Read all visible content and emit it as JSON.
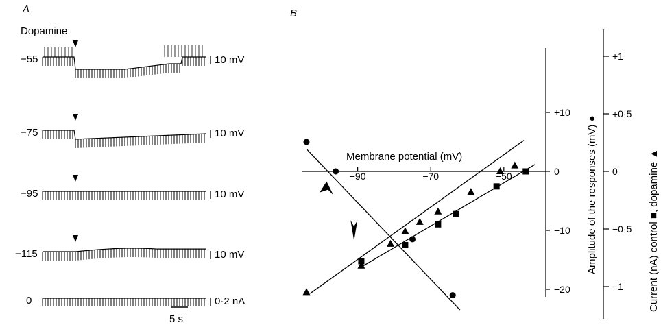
{
  "chart_data": [
    {
      "type": "traces",
      "panel_label": "A",
      "stimulus_label": "Dopamine",
      "traces": [
        {
          "holding_potential": "−55",
          "scale_label": "10 mV",
          "response": "hyperpolarization, firing suppressed then recovers"
        },
        {
          "holding_potential": "−75",
          "scale_label": "10 mV",
          "response": "hyperpolarization"
        },
        {
          "holding_potential": "−95",
          "scale_label": "10 mV",
          "response": "no clear response"
        },
        {
          "holding_potential": "−115",
          "scale_label": "10 mV",
          "response": "small depolarization"
        },
        {
          "holding_potential": "0",
          "scale_label": "0·2 nA",
          "response": "current pulses"
        }
      ],
      "time_scale_label": "5 s"
    },
    {
      "type": "scatter",
      "panel_label": "B",
      "xlabel": "Membrane potential (mV)",
      "x_ticks": [
        "−90",
        "−70",
        "−50"
      ],
      "xlim": [
        -104,
        -40
      ],
      "ylabel_right_1": "Amplitude of the responses (mV) ●",
      "y1_ticks": [
        "+10",
        "0",
        "−10",
        "−20"
      ],
      "ylim_mV": [
        -25,
        18
      ],
      "ylabel_right_2": "Current (nA) control ■, dopamine ▲",
      "y2_ticks": [
        "+1",
        "+0·5",
        "0",
        "−0·5",
        "−1"
      ],
      "ylim_nA": [
        -1.05,
        1.1
      ],
      "series": [
        {
          "marker": "circle",
          "axis": "mV",
          "x": [
            -104,
            -96,
            -75,
            -64
          ],
          "y": [
            5,
            0,
            -11.5,
            -21
          ]
        },
        {
          "marker": "square",
          "axis": "nA",
          "x": [
            -89,
            -77,
            -68,
            -63,
            -52,
            -44
          ],
          "y": [
            -0.78,
            -0.64,
            -0.46,
            -0.37,
            -0.13,
            0
          ]
        },
        {
          "marker": "triangle",
          "axis": "nA",
          "x": [
            -104,
            -89,
            -81,
            -77,
            -73,
            -68,
            -59,
            -51,
            -47
          ],
          "y": [
            -1.05,
            -0.82,
            -0.63,
            -0.52,
            -0.44,
            -0.35,
            -0.18,
            0,
            0.05
          ]
        }
      ],
      "fit_lines": [
        {
          "axis": "mV",
          "from": [
            -104,
            3.8
          ],
          "to": [
            -62,
            -23.5
          ]
        },
        {
          "axis": "nA",
          "from": [
            -89,
            -0.83
          ],
          "to": [
            -41.5,
            0.06
          ]
        },
        {
          "axis": "nA",
          "from": [
            -103,
            -1.06
          ],
          "to": [
            -44.5,
            0.27
          ]
        }
      ],
      "reversal_markers": [
        {
          "axis": "mV",
          "x": -97,
          "y": -1
        },
        {
          "axis": "nA",
          "x": -91,
          "y": -0.68
        }
      ]
    }
  ]
}
